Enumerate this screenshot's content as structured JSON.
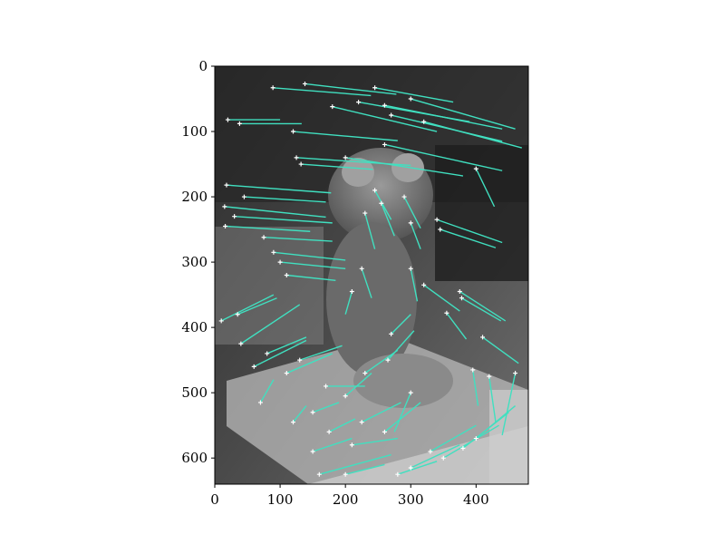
{
  "chart_data": {
    "type": "scatter",
    "description_kind": "feature-tracks-over-grayscale-image",
    "x_ticks": [
      0,
      100,
      200,
      300,
      400
    ],
    "y_ticks": [
      0,
      100,
      200,
      300,
      400,
      500,
      600
    ],
    "xlim": [
      0,
      480
    ],
    "ylim": [
      640,
      0
    ],
    "y_inverted": true,
    "grid": false,
    "track_color": "#40e0c0",
    "marker_color": "#ffffff",
    "marker": "+",
    "background": "grayscale photograph (stuffed toy on a book)",
    "tracks": [
      {
        "x": 89,
        "y": 33,
        "dx": 150,
        "dy": 12
      },
      {
        "x": 138,
        "y": 27,
        "dx": 140,
        "dy": 16
      },
      {
        "x": 245,
        "y": 33,
        "dx": 120,
        "dy": 22
      },
      {
        "x": 20,
        "y": 82,
        "dx": 80,
        "dy": 0
      },
      {
        "x": 38,
        "y": 88,
        "dx": 95,
        "dy": 0
      },
      {
        "x": 180,
        "y": 62,
        "dx": 160,
        "dy": 38
      },
      {
        "x": 220,
        "y": 55,
        "dx": 170,
        "dy": 30
      },
      {
        "x": 260,
        "y": 60,
        "dx": 180,
        "dy": 36
      },
      {
        "x": 270,
        "y": 75,
        "dx": 170,
        "dy": 40
      },
      {
        "x": 300,
        "y": 50,
        "dx": 160,
        "dy": 46
      },
      {
        "x": 320,
        "y": 85,
        "dx": 150,
        "dy": 40
      },
      {
        "x": 120,
        "y": 100,
        "dx": 160,
        "dy": 14
      },
      {
        "x": 125,
        "y": 140,
        "dx": 175,
        "dy": 12
      },
      {
        "x": 132,
        "y": 150,
        "dx": 110,
        "dy": 8
      },
      {
        "x": 200,
        "y": 140,
        "dx": 180,
        "dy": 28
      },
      {
        "x": 260,
        "y": 120,
        "dx": 180,
        "dy": 40
      },
      {
        "x": 400,
        "y": 157,
        "dx": 28,
        "dy": 58
      },
      {
        "x": 18,
        "y": 182,
        "dx": 160,
        "dy": 12
      },
      {
        "x": 15,
        "y": 215,
        "dx": 155,
        "dy": 16
      },
      {
        "x": 16,
        "y": 245,
        "dx": 130,
        "dy": 8
      },
      {
        "x": 45,
        "y": 200,
        "dx": 125,
        "dy": 8
      },
      {
        "x": 30,
        "y": 230,
        "dx": 150,
        "dy": 10
      },
      {
        "x": 75,
        "y": 262,
        "dx": 105,
        "dy": 6
      },
      {
        "x": 90,
        "y": 285,
        "dx": 110,
        "dy": 12
      },
      {
        "x": 100,
        "y": 300,
        "dx": 100,
        "dy": 10
      },
      {
        "x": 110,
        "y": 320,
        "dx": 75,
        "dy": 8
      },
      {
        "x": 245,
        "y": 190,
        "dx": 25,
        "dy": 45
      },
      {
        "x": 255,
        "y": 210,
        "dx": 20,
        "dy": 50
      },
      {
        "x": 230,
        "y": 225,
        "dx": 15,
        "dy": 55
      },
      {
        "x": 290,
        "y": 200,
        "dx": 25,
        "dy": 48
      },
      {
        "x": 340,
        "y": 235,
        "dx": 100,
        "dy": 35
      },
      {
        "x": 345,
        "y": 250,
        "dx": 85,
        "dy": 28
      },
      {
        "x": 300,
        "y": 240,
        "dx": 15,
        "dy": 40
      },
      {
        "x": 10,
        "y": 390,
        "dx": 80,
        "dy": -40
      },
      {
        "x": 35,
        "y": 380,
        "dx": 60,
        "dy": -25
      },
      {
        "x": 40,
        "y": 425,
        "dx": 90,
        "dy": -60
      },
      {
        "x": 60,
        "y": 460,
        "dx": 80,
        "dy": -40
      },
      {
        "x": 80,
        "y": 440,
        "dx": 60,
        "dy": -25
      },
      {
        "x": 110,
        "y": 470,
        "dx": 70,
        "dy": -30
      },
      {
        "x": 130,
        "y": 450,
        "dx": 65,
        "dy": -22
      },
      {
        "x": 70,
        "y": 515,
        "dx": 20,
        "dy": -35
      },
      {
        "x": 170,
        "y": 490,
        "dx": 60,
        "dy": 0
      },
      {
        "x": 200,
        "y": 505,
        "dx": 40,
        "dy": -35
      },
      {
        "x": 230,
        "y": 470,
        "dx": 50,
        "dy": -35
      },
      {
        "x": 265,
        "y": 450,
        "dx": 40,
        "dy": -45
      },
      {
        "x": 320,
        "y": 335,
        "dx": 55,
        "dy": 40
      },
      {
        "x": 375,
        "y": 345,
        "dx": 70,
        "dy": 45
      },
      {
        "x": 378,
        "y": 355,
        "dx": 60,
        "dy": 35
      },
      {
        "x": 355,
        "y": 378,
        "dx": 30,
        "dy": 40
      },
      {
        "x": 410,
        "y": 415,
        "dx": 55,
        "dy": 40
      },
      {
        "x": 395,
        "y": 465,
        "dx": 8,
        "dy": 55
      },
      {
        "x": 420,
        "y": 475,
        "dx": 10,
        "dy": 70
      },
      {
        "x": 460,
        "y": 470,
        "dx": -20,
        "dy": 95
      },
      {
        "x": 300,
        "y": 500,
        "dx": -25,
        "dy": 60
      },
      {
        "x": 330,
        "y": 590,
        "dx": 70,
        "dy": -40
      },
      {
        "x": 350,
        "y": 600,
        "dx": 85,
        "dy": -50
      },
      {
        "x": 380,
        "y": 585,
        "dx": 70,
        "dy": -55
      },
      {
        "x": 400,
        "y": 570,
        "dx": 60,
        "dy": -50
      },
      {
        "x": 300,
        "y": 615,
        "dx": 75,
        "dy": -35
      },
      {
        "x": 280,
        "y": 625,
        "dx": 60,
        "dy": -20
      },
      {
        "x": 200,
        "y": 625,
        "dx": 60,
        "dy": -15
      },
      {
        "x": 160,
        "y": 625,
        "dx": 110,
        "dy": -30
      },
      {
        "x": 150,
        "y": 590,
        "dx": 60,
        "dy": -20
      },
      {
        "x": 175,
        "y": 560,
        "dx": 40,
        "dy": -20
      },
      {
        "x": 210,
        "y": 580,
        "dx": 70,
        "dy": -10
      },
      {
        "x": 150,
        "y": 530,
        "dx": 40,
        "dy": -15
      },
      {
        "x": 120,
        "y": 545,
        "dx": 20,
        "dy": -25
      },
      {
        "x": 225,
        "y": 545,
        "dx": 60,
        "dy": -30
      },
      {
        "x": 260,
        "y": 560,
        "dx": 55,
        "dy": -45
      },
      {
        "x": 210,
        "y": 345,
        "dx": -10,
        "dy": 35
      },
      {
        "x": 225,
        "y": 310,
        "dx": 15,
        "dy": 45
      },
      {
        "x": 300,
        "y": 310,
        "dx": 10,
        "dy": 50
      },
      {
        "x": 270,
        "y": 410,
        "dx": 30,
        "dy": -30
      }
    ]
  }
}
